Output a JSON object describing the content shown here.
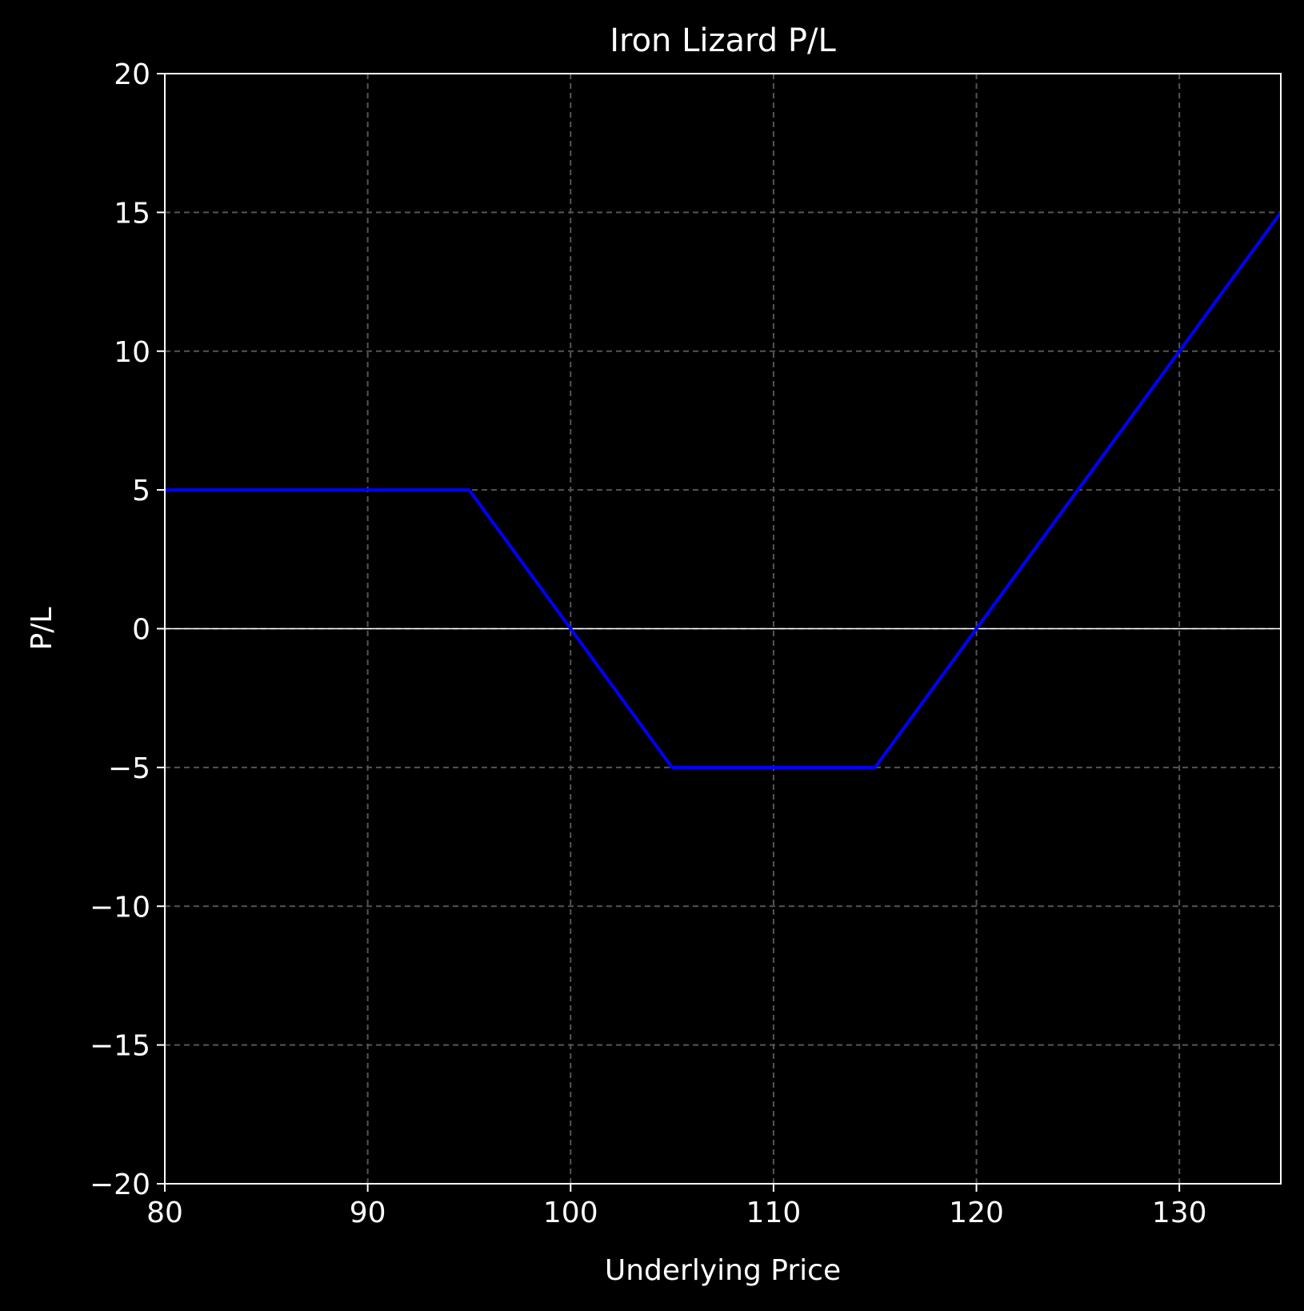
{
  "chart_data": {
    "type": "line",
    "title": "Iron Lizard P/L",
    "xlabel": "Underlying Price",
    "ylabel": "P/L",
    "xlim": [
      80,
      135
    ],
    "ylim": [
      -20,
      20
    ],
    "x_ticks": [
      80,
      90,
      100,
      110,
      120,
      130
    ],
    "x_tick_labels": [
      "80",
      "90",
      "100",
      "110",
      "120",
      "130"
    ],
    "y_ticks": [
      20,
      15,
      10,
      5,
      0,
      -5,
      -10,
      -15,
      -20
    ],
    "y_tick_labels": [
      "20",
      "15",
      "10",
      "5",
      "0",
      "−5",
      "−10",
      "−15",
      "−20"
    ],
    "grid": true,
    "zero_line": true,
    "series": [
      {
        "color": "#0000ff",
        "x": [
          80,
          95,
          105,
          115,
          135
        ],
        "y": [
          5,
          5,
          -5,
          -5,
          15
        ]
      }
    ],
    "colors": {
      "background": "#000000",
      "axes": "#ffffff",
      "grid": "#555555",
      "zero_line": "#ffffff"
    }
  }
}
